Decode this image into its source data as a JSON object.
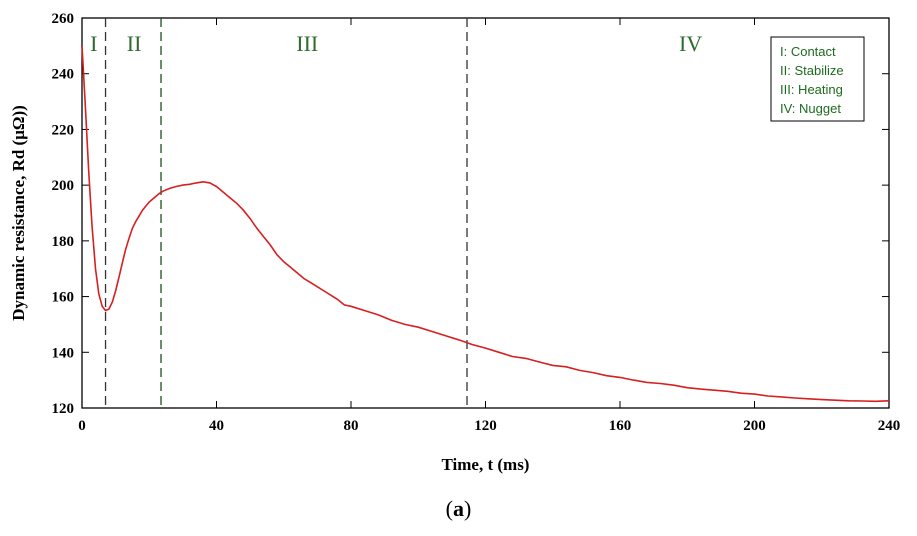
{
  "chart_data": {
    "type": "line",
    "xlabel": "Time, t (ms)",
    "ylabel": "Dynamic resistance, Rd (μΩ))",
    "xlim": [
      0,
      240
    ],
    "ylim": [
      120,
      260
    ],
    "xticks": [
      0,
      40,
      80,
      120,
      160,
      200,
      240
    ],
    "yticks": [
      120,
      140,
      160,
      180,
      200,
      220,
      240,
      260
    ],
    "grid": false,
    "series": [
      {
        "color": "#d62020",
        "points": [
          [
            0,
            250
          ],
          [
            1,
            228
          ],
          [
            2,
            205
          ],
          [
            3,
            185
          ],
          [
            4,
            170
          ],
          [
            5,
            161
          ],
          [
            6,
            156.5
          ],
          [
            7,
            155
          ],
          [
            8,
            155.5
          ],
          [
            9,
            158
          ],
          [
            10,
            162
          ],
          [
            11,
            167
          ],
          [
            12,
            172
          ],
          [
            13,
            177
          ],
          [
            14,
            181
          ],
          [
            15,
            184.5
          ],
          [
            16,
            187
          ],
          [
            17,
            189
          ],
          [
            18,
            191
          ],
          [
            19,
            192.5
          ],
          [
            20,
            194
          ],
          [
            21,
            195
          ],
          [
            22,
            196
          ],
          [
            23,
            197
          ],
          [
            24,
            197.8
          ],
          [
            26,
            198.8
          ],
          [
            28,
            199.5
          ],
          [
            30,
            200
          ],
          [
            32,
            200.3
          ],
          [
            34,
            200.8
          ],
          [
            36,
            201.2
          ],
          [
            38,
            200.8
          ],
          [
            40,
            199.5
          ],
          [
            42,
            197.5
          ],
          [
            44,
            195.5
          ],
          [
            46,
            193.5
          ],
          [
            48,
            191
          ],
          [
            50,
            188
          ],
          [
            52,
            184.5
          ],
          [
            54,
            181.5
          ],
          [
            56,
            178.5
          ],
          [
            58,
            175
          ],
          [
            60,
            172.5
          ],
          [
            62,
            170.5
          ],
          [
            64,
            168.5
          ],
          [
            66,
            166.5
          ],
          [
            68,
            165
          ],
          [
            70,
            163.5
          ],
          [
            72,
            162
          ],
          [
            74,
            160.5
          ],
          [
            76,
            159
          ],
          [
            78,
            157
          ],
          [
            80,
            156.5
          ],
          [
            84,
            155
          ],
          [
            88,
            153.5
          ],
          [
            92,
            151.5
          ],
          [
            96,
            150
          ],
          [
            100,
            149
          ],
          [
            104,
            147.5
          ],
          [
            108,
            146
          ],
          [
            112,
            144.5
          ],
          [
            116,
            142.8
          ],
          [
            120,
            141.5
          ],
          [
            124,
            140
          ],
          [
            128,
            138.5
          ],
          [
            132,
            137.8
          ],
          [
            136,
            136.5
          ],
          [
            140,
            135.3
          ],
          [
            144,
            134.8
          ],
          [
            148,
            133.5
          ],
          [
            152,
            132.7
          ],
          [
            156,
            131.6
          ],
          [
            160,
            131
          ],
          [
            164,
            130
          ],
          [
            168,
            129.2
          ],
          [
            172,
            128.8
          ],
          [
            176,
            128.2
          ],
          [
            180,
            127.3
          ],
          [
            184,
            126.8
          ],
          [
            188,
            126.4
          ],
          [
            192,
            126
          ],
          [
            196,
            125.3
          ],
          [
            200,
            125
          ],
          [
            204,
            124.3
          ],
          [
            208,
            124
          ],
          [
            212,
            123.6
          ],
          [
            216,
            123.3
          ],
          [
            220,
            123
          ],
          [
            224,
            122.8
          ],
          [
            228,
            122.6
          ],
          [
            232,
            122.5
          ],
          [
            236,
            122.4
          ],
          [
            240,
            122.6
          ]
        ]
      }
    ],
    "phase_boundaries": [
      7,
      23.5,
      114.5
    ],
    "phase_labels": [
      {
        "text": "I",
        "x": 3.5
      },
      {
        "text": "II",
        "x": 15.5
      },
      {
        "text": "III",
        "x": 67
      },
      {
        "text": "IV",
        "x": 181
      }
    ],
    "legend": {
      "placement": "top-right",
      "entries": [
        "I: Contact",
        "II: Stabilize",
        "III: Heating",
        "IV: Nugget"
      ]
    }
  },
  "caption": {
    "open": "(",
    "letter": "a",
    "close": ")"
  }
}
